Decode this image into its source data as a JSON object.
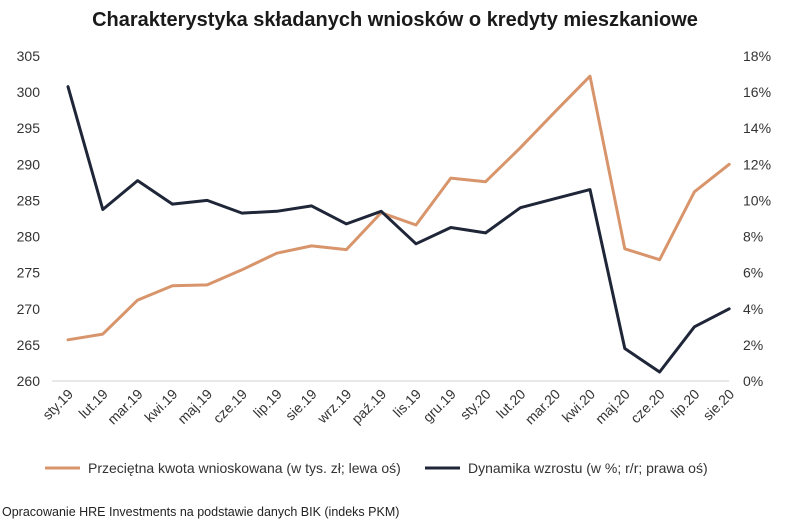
{
  "chart_data": {
    "type": "line",
    "title": "Charakterystyka składanych wniosków o kredyty mieszkaniowe",
    "categories": [
      "sty.19",
      "lut.19",
      "mar.19",
      "kwi.19",
      "maj.19",
      "cze.19",
      "lip.19",
      "sie.19",
      "wrz.19",
      "paź.19",
      "lis.19",
      "gru.19",
      "sty.20",
      "lut.20",
      "mar.20",
      "kwi.20",
      "maj.20",
      "cze.20",
      "lip.20",
      "sie.20"
    ],
    "series": [
      {
        "name": "Przeciętna kwota wnioskowana (w tys. zł; lewa oś)",
        "axis": "left",
        "color": "#d8956b",
        "values": [
          265.7,
          266.5,
          271.2,
          273.2,
          273.3,
          275.4,
          277.7,
          278.7,
          278.2,
          283.3,
          281.6,
          288.1,
          287.6,
          292.3,
          297.3,
          302.2,
          278.3,
          276.8,
          286.2,
          290.0
        ]
      },
      {
        "name": "Dynamika wzrostu (w %; r/r; prawa oś)",
        "axis": "right",
        "color": "#1f2638",
        "values": [
          16.3,
          9.5,
          11.1,
          9.8,
          10.0,
          9.3,
          9.4,
          9.7,
          8.7,
          9.4,
          7.6,
          8.5,
          8.2,
          9.6,
          10.1,
          10.6,
          1.8,
          0.5,
          3.0,
          4.0
        ]
      }
    ],
    "y_left": {
      "min": 260,
      "max": 305,
      "ticks": [
        305,
        300,
        295,
        290,
        285,
        280,
        275,
        270,
        265,
        260
      ]
    },
    "y_right": {
      "min": 0,
      "max": 18,
      "ticks": [
        "18%",
        "16%",
        "14%",
        "12%",
        "10%",
        "8%",
        "6%",
        "4%",
        "2%",
        "0%"
      ]
    },
    "grid": false,
    "legend_position": "bottom"
  },
  "source_note": "Opracowanie HRE Investments na podstawie danych BIK (indeks PKM)"
}
